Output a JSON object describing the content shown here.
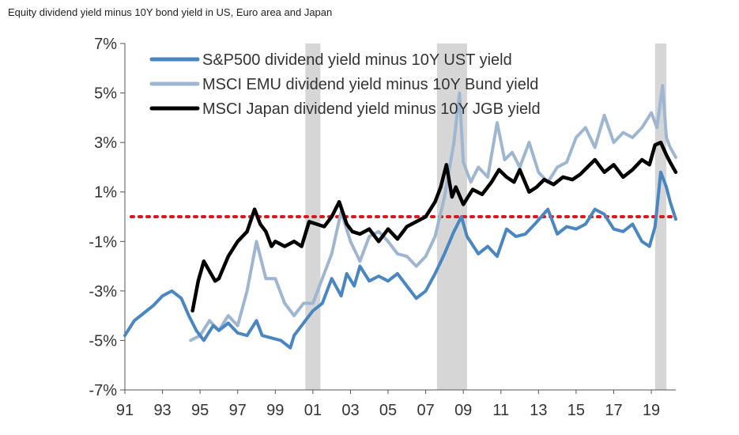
{
  "chart_data": {
    "type": "line",
    "title": "Equity dividend yield minus 10Y bond yield in US, Euro area and Japan",
    "xlabel": "",
    "ylabel": "",
    "xlim": [
      1991.0,
      2020.3
    ],
    "ylim": [
      -7,
      7
    ],
    "x_tick_values": [
      1991,
      1993,
      1995,
      1997,
      1999,
      2001,
      2003,
      2005,
      2007,
      2009,
      2011,
      2013,
      2015,
      2017,
      2019
    ],
    "x_tick_labels": [
      "91",
      "93",
      "95",
      "97",
      "99",
      "01",
      "03",
      "05",
      "07",
      "09",
      "11",
      "13",
      "15",
      "17",
      "19"
    ],
    "y_tick_values": [
      7,
      5,
      3,
      1,
      -1,
      -3,
      -5,
      -7
    ],
    "y_tick_labels": [
      "7%",
      "5%",
      "3%",
      "1%",
      "-1%",
      "-3%",
      "-5%",
      "-7%"
    ],
    "grid": false,
    "legend_position": "top-left",
    "reference_line": {
      "y": 0,
      "color": "#e0141e",
      "style": "dotted"
    },
    "recession_bands": [
      {
        "start": 2000.6,
        "end": 2001.4
      },
      {
        "start": 2007.6,
        "end": 2009.2
      },
      {
        "start": 2019.2,
        "end": 2019.8
      }
    ],
    "series": [
      {
        "name": "S&P500 dividend yield minus 10Y UST yield",
        "color": "#4a86c0",
        "x": [
          1991.0,
          1991.5,
          1992.0,
          1992.5,
          1993.0,
          1993.5,
          1994.0,
          1994.4,
          1994.8,
          1995.2,
          1995.7,
          1996.0,
          1996.5,
          1997.0,
          1997.5,
          1998.0,
          1998.3,
          1998.8,
          1999.3,
          1999.8,
          2000.0,
          2000.5,
          2001.0,
          2001.5,
          2002.0,
          2002.5,
          2002.8,
          2003.2,
          2003.5,
          2004.0,
          2004.5,
          2005.0,
          2005.5,
          2006.0,
          2006.5,
          2007.0,
          2007.5,
          2008.0,
          2008.5,
          2008.9,
          2009.2,
          2009.8,
          2010.3,
          2010.8,
          2011.3,
          2011.8,
          2012.3,
          2012.8,
          2013.5,
          2014.0,
          2014.5,
          2015.0,
          2015.5,
          2016.0,
          2016.5,
          2017.0,
          2017.5,
          2018.0,
          2018.5,
          2018.9,
          2019.2,
          2019.5,
          2019.8,
          2020.0,
          2020.3
        ],
        "y": [
          -4.8,
          -4.2,
          -3.9,
          -3.6,
          -3.2,
          -3.0,
          -3.3,
          -4.0,
          -4.6,
          -5.0,
          -4.4,
          -4.6,
          -4.3,
          -4.7,
          -4.8,
          -4.2,
          -4.8,
          -4.9,
          -5.0,
          -5.3,
          -4.8,
          -4.3,
          -3.8,
          -3.5,
          -2.5,
          -3.2,
          -2.3,
          -2.8,
          -2.0,
          -2.6,
          -2.4,
          -2.6,
          -2.3,
          -2.8,
          -3.3,
          -3.0,
          -2.3,
          -1.5,
          -0.6,
          0.0,
          -0.8,
          -1.5,
          -1.2,
          -1.6,
          -0.5,
          -0.8,
          -0.7,
          -0.3,
          0.3,
          -0.7,
          -0.4,
          -0.5,
          -0.3,
          0.3,
          0.1,
          -0.5,
          -0.6,
          -0.3,
          -1.0,
          -1.2,
          -0.4,
          1.8,
          1.2,
          0.6,
          -0.1
        ]
      },
      {
        "name": "MSCI EMU dividend yield minus 10Y Bund yield",
        "color": "#9fb6d1",
        "x": [
          1994.5,
          1995.0,
          1995.5,
          1996.0,
          1996.5,
          1997.0,
          1997.5,
          1998.0,
          1998.5,
          1999.0,
          1999.5,
          2000.0,
          2000.5,
          2001.0,
          2001.5,
          2002.0,
          2002.5,
          2003.0,
          2003.5,
          2004.0,
          2004.5,
          2005.0,
          2005.5,
          2006.0,
          2006.5,
          2007.0,
          2007.5,
          2008.0,
          2008.5,
          2008.8,
          2009.0,
          2009.4,
          2009.8,
          2010.3,
          2010.8,
          2011.2,
          2011.6,
          2012.0,
          2012.5,
          2013.0,
          2013.5,
          2014.0,
          2014.5,
          2015.0,
          2015.5,
          2016.0,
          2016.5,
          2017.0,
          2017.5,
          2018.0,
          2018.5,
          2019.0,
          2019.3,
          2019.6,
          2019.8,
          2020.0,
          2020.3
        ],
        "y": [
          -5.0,
          -4.8,
          -4.2,
          -4.6,
          -4.0,
          -4.4,
          -3.0,
          -1.0,
          -2.5,
          -2.5,
          -3.5,
          -4.0,
          -3.5,
          -3.5,
          -2.5,
          -1.5,
          0.2,
          -1.0,
          -1.8,
          -0.8,
          -0.6,
          -1.0,
          -1.5,
          -1.6,
          -2.0,
          -1.6,
          -0.8,
          0.8,
          3.0,
          5.0,
          2.2,
          1.4,
          2.0,
          1.6,
          3.8,
          2.3,
          2.6,
          2.0,
          3.0,
          1.8,
          1.4,
          2.0,
          2.2,
          3.2,
          3.6,
          2.8,
          4.1,
          3.0,
          3.4,
          3.2,
          3.6,
          4.2,
          3.6,
          5.3,
          3.2,
          2.8,
          2.4
        ]
      },
      {
        "name": "MSCI Japan dividend yield minus 10Y JGB yield",
        "color": "#000000",
        "x": [
          1994.6,
          1994.9,
          1995.2,
          1995.5,
          1995.8,
          1996.0,
          1996.5,
          1997.0,
          1997.5,
          1997.9,
          1998.2,
          1998.5,
          1998.8,
          1999.0,
          1999.5,
          2000.0,
          2000.4,
          2000.8,
          2001.2,
          2001.6,
          2002.0,
          2002.4,
          2002.8,
          2003.1,
          2003.5,
          2004.0,
          2004.5,
          2005.0,
          2005.5,
          2006.0,
          2006.5,
          2007.0,
          2007.5,
          2007.8,
          2008.1,
          2008.4,
          2008.6,
          2009.0,
          2009.5,
          2010.0,
          2010.5,
          2010.9,
          2011.3,
          2011.7,
          2012.0,
          2012.5,
          2012.9,
          2013.3,
          2013.8,
          2014.3,
          2014.8,
          2015.2,
          2015.6,
          2016.0,
          2016.5,
          2017.0,
          2017.5,
          2018.0,
          2018.5,
          2018.9,
          2019.2,
          2019.5,
          2019.8,
          2020.0,
          2020.3
        ],
        "y": [
          -3.8,
          -2.6,
          -1.8,
          -2.2,
          -2.6,
          -2.5,
          -1.6,
          -1.0,
          -0.6,
          0.3,
          -0.3,
          -0.6,
          -1.2,
          -1.0,
          -1.2,
          -1.0,
          -1.2,
          -0.2,
          -0.3,
          -0.4,
          0.0,
          0.6,
          -0.3,
          -0.6,
          -0.7,
          -0.5,
          -1.0,
          -0.5,
          -0.9,
          -0.4,
          -0.2,
          0.0,
          0.6,
          1.2,
          2.1,
          0.8,
          1.2,
          0.5,
          1.1,
          0.9,
          1.4,
          1.9,
          1.6,
          1.4,
          1.9,
          1.0,
          1.2,
          1.5,
          1.3,
          1.6,
          1.5,
          1.7,
          2.0,
          2.3,
          1.8,
          2.1,
          1.6,
          1.9,
          2.3,
          2.1,
          2.9,
          3.0,
          2.5,
          2.2,
          1.8
        ]
      }
    ]
  }
}
